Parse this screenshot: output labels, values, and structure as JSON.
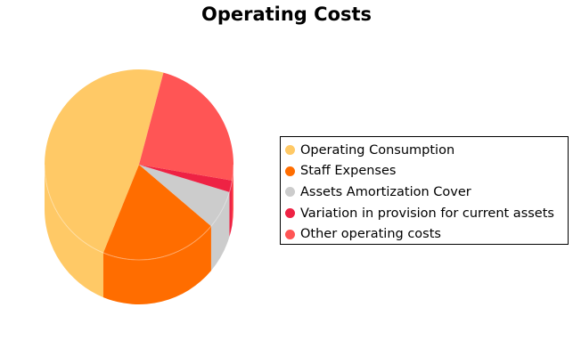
{
  "chart_data": {
    "type": "pie",
    "title": "Operating Costs",
    "legend_position": "right",
    "slices": [
      {
        "label": "Operating Consumption",
        "value": 48.0,
        "color": "#ffc966"
      },
      {
        "label": "Staff Expenses",
        "value": 20.0,
        "color": "#ff6d00"
      },
      {
        "label": "Assets Amortization Cover",
        "value": 6.5,
        "color": "#cccccc"
      },
      {
        "label": "Variation in provision for current assets",
        "value": 2.0,
        "color": "#ee2244"
      },
      {
        "label": "Other operating costs",
        "value": 23.5,
        "color": "#ff5555"
      }
    ]
  }
}
